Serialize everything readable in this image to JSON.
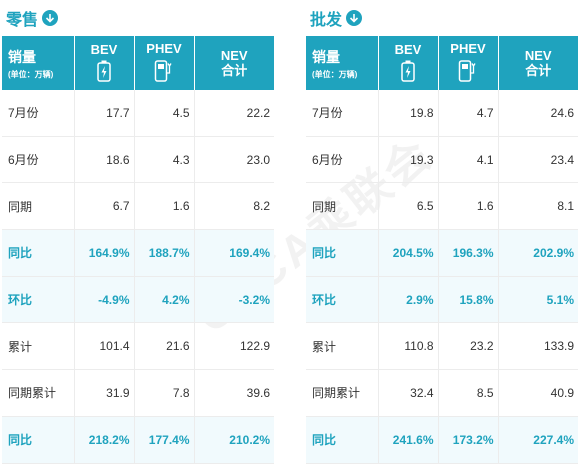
{
  "chart_data": [
    {
      "type": "table",
      "title": "零售",
      "corner_label": "销量",
      "corner_unit": "(单位：万辆)",
      "columns": [
        {
          "line1": "BEV",
          "line2": "",
          "icon": "battery-icon"
        },
        {
          "line1": "PHEV",
          "line2": "",
          "icon": "charger-icon"
        },
        {
          "line1": "NEV",
          "line2": "合计",
          "icon": ""
        }
      ],
      "rows": [
        {
          "label": "7月份",
          "cells": [
            "17.7",
            "4.5",
            "22.2"
          ],
          "highlight": false
        },
        {
          "label": "6月份",
          "cells": [
            "18.6",
            "4.3",
            "23.0"
          ],
          "highlight": false
        },
        {
          "label": "同期",
          "cells": [
            "6.7",
            "1.6",
            "8.2"
          ],
          "highlight": false
        },
        {
          "label": "同比",
          "cells": [
            "164.9%",
            "188.7%",
            "169.4%"
          ],
          "highlight": true
        },
        {
          "label": "环比",
          "cells": [
            "-4.9%",
            "4.2%",
            "-3.2%"
          ],
          "highlight": true
        },
        {
          "label": "累计",
          "cells": [
            "101.4",
            "21.6",
            "122.9"
          ],
          "highlight": false
        },
        {
          "label": "同期累计",
          "cells": [
            "31.9",
            "7.8",
            "39.6"
          ],
          "highlight": false
        },
        {
          "label": "同比",
          "cells": [
            "218.2%",
            "177.4%",
            "210.2%"
          ],
          "highlight": true
        }
      ]
    },
    {
      "type": "table",
      "title": "批发",
      "corner_label": "销量",
      "corner_unit": "(单位：万辆)",
      "columns": [
        {
          "line1": "BEV",
          "line2": "",
          "icon": "battery-icon"
        },
        {
          "line1": "PHEV",
          "line2": "",
          "icon": "charger-icon"
        },
        {
          "line1": "NEV",
          "line2": "合计",
          "icon": ""
        }
      ],
      "rows": [
        {
          "label": "7月份",
          "cells": [
            "19.8",
            "4.7",
            "24.6"
          ],
          "highlight": false
        },
        {
          "label": "6月份",
          "cells": [
            "19.3",
            "4.1",
            "23.4"
          ],
          "highlight": false
        },
        {
          "label": "同期",
          "cells": [
            "6.5",
            "1.6",
            "8.1"
          ],
          "highlight": false
        },
        {
          "label": "同比",
          "cells": [
            "204.5%",
            "196.3%",
            "202.9%"
          ],
          "highlight": true
        },
        {
          "label": "环比",
          "cells": [
            "2.9%",
            "15.8%",
            "5.1%"
          ],
          "highlight": true
        },
        {
          "label": "累计",
          "cells": [
            "110.8",
            "23.2",
            "133.9"
          ],
          "highlight": false
        },
        {
          "label": "同期累计",
          "cells": [
            "32.4",
            "8.5",
            "40.9"
          ],
          "highlight": false
        },
        {
          "label": "同比",
          "cells": [
            "241.6%",
            "173.2%",
            "227.4%"
          ],
          "highlight": true
        }
      ]
    }
  ],
  "watermark": "CPCA乘联会",
  "colors": {
    "accent": "#1fa3be",
    "highlight_bg": "#f1fafd"
  }
}
